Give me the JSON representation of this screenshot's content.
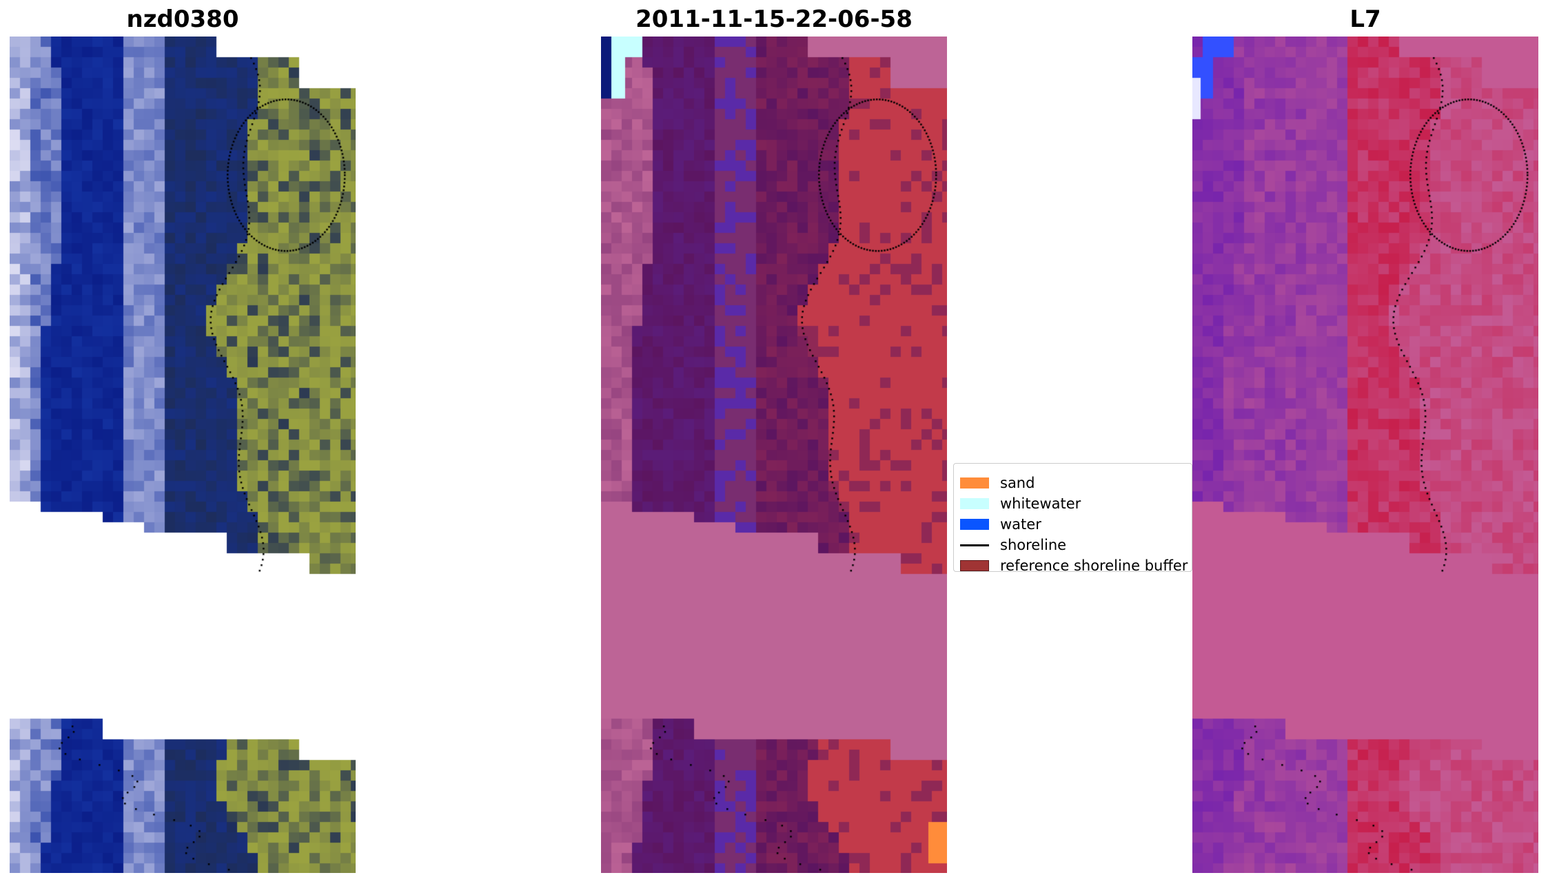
{
  "panels": [
    {
      "title": "nzd0380",
      "kind": "rgb"
    },
    {
      "title": "2011-11-15-22-06-58",
      "kind": "classified"
    },
    {
      "title": "L7",
      "kind": "index"
    }
  ],
  "legend": {
    "items": [
      {
        "label": "sand",
        "color": "#ff8c3a",
        "type": "patch"
      },
      {
        "label": "whitewater",
        "color": "#c8ffff",
        "type": "patch"
      },
      {
        "label": "water",
        "color": "#0a55ff",
        "type": "patch"
      },
      {
        "label": "shoreline",
        "color": "#000000",
        "type": "line"
      },
      {
        "label": "reference shoreline buffer",
        "color": "#a03434",
        "type": "patch"
      }
    ]
  },
  "colors": {
    "rgb_water_deep": "#0b1f8a",
    "rgb_water_mid": "#13309e",
    "rgb_surf": "#dcdcf2",
    "rgb_veg": "#9aa240",
    "rgb_veg_dark": "#1e2d55",
    "cls_nodata": "#bd6496",
    "cls_dark": "#5c1560",
    "cls_water": "#5a2aa8",
    "cls_red": "#c23a4a",
    "idx_purple": "#6a1bb0",
    "idx_pink": "#c45a94",
    "idx_red": "#c8103a",
    "idx_water": "#3350ff"
  }
}
